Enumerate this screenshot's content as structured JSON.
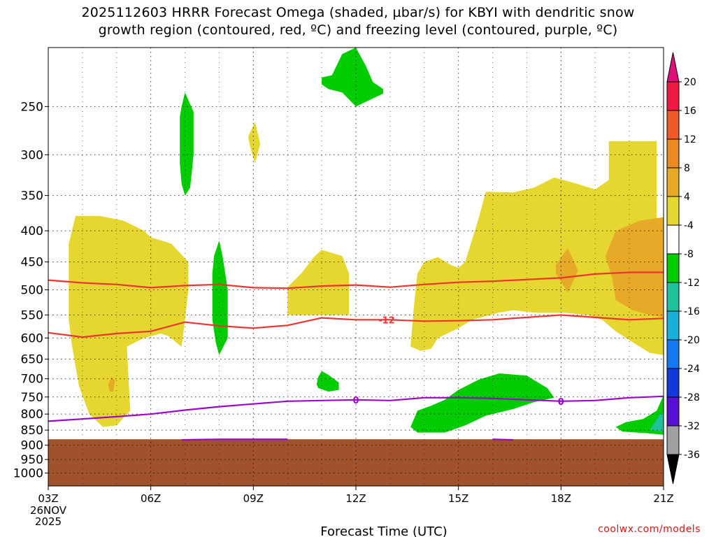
{
  "title": {
    "line1": "2025112603 HRRR Forecast Omega (shaded, µbar/s) for KBYI with dendritic snow",
    "line2": "growth region (contoured, red, ºC) and freezing level (contoured, purple, ºC)"
  },
  "credit": "coolwx.com/models",
  "chart_data": {
    "type": "heatmap",
    "xlabel": "Forecast Time (UTC)",
    "x_ticks": [
      "03Z",
      "06Z",
      "09Z",
      "12Z",
      "15Z",
      "18Z",
      "21Z"
    ],
    "x_tick_hours": [
      3,
      6,
      9,
      12,
      15,
      18,
      21
    ],
    "x_start_date": [
      "26NOV",
      "2025"
    ],
    "x_range": [
      3,
      21
    ],
    "y_ticks": [
      250,
      300,
      350,
      400,
      450,
      500,
      550,
      600,
      650,
      700,
      750,
      800,
      850,
      900,
      950,
      1000
    ],
    "y_range": [
      200,
      1050
    ],
    "y_scale": "log-pressure",
    "grid": true,
    "colorbar": {
      "labels": [
        "20",
        "16",
        "12",
        "8",
        "4",
        "-4",
        "-8",
        "-12",
        "-16",
        "-20",
        "-24",
        "-28",
        "-32",
        "-36"
      ],
      "colors": [
        "#ee1a44",
        "#f05a2a",
        "#ea8a24",
        "#e6aa28",
        "#e6d630",
        "#ffffff",
        "#00cc00",
        "#1fc09a",
        "#18b0d8",
        "#1478f0",
        "#1238d8",
        "#5810d2",
        "#9a08cc",
        "#a0a0a0"
      ],
      "top_color": "#e0107a",
      "bottom_color": "#000000"
    },
    "ground_color": "#a0522d",
    "ground_top_pressure": 880,
    "omega_regions": [
      {
        "value_class": "4 to 8",
        "color": "#e6d630",
        "points": [
          [
            3.6,
            485
          ],
          [
            3.6,
            560
          ],
          [
            3.7,
            620
          ],
          [
            3.9,
            720
          ],
          [
            4.2,
            800
          ],
          [
            4.6,
            840
          ],
          [
            5.0,
            835
          ],
          [
            5.4,
            790
          ],
          [
            5.3,
            620
          ],
          [
            5.8,
            600
          ],
          [
            6.3,
            590
          ],
          [
            6.5,
            595
          ],
          [
            6.9,
            620
          ],
          [
            7.0,
            560
          ],
          [
            7.1,
            500
          ],
          [
            7.1,
            450
          ],
          [
            6.6,
            420
          ],
          [
            6.0,
            410
          ],
          [
            5.8,
            400
          ],
          [
            5.2,
            385
          ],
          [
            4.5,
            378
          ],
          [
            3.8,
            378
          ],
          [
            3.6,
            420
          ]
        ]
      },
      {
        "value_class": "4 to 8",
        "color": "#e6d630",
        "points": [
          [
            10.0,
            550
          ],
          [
            10.0,
            495
          ],
          [
            10.4,
            470
          ],
          [
            10.8,
            440
          ],
          [
            11.0,
            430
          ],
          [
            11.6,
            440
          ],
          [
            11.8,
            470
          ],
          [
            11.8,
            550
          ]
        ]
      },
      {
        "value_class": "4 to 8",
        "color": "#e6d630",
        "points": [
          [
            13.6,
            620
          ],
          [
            13.7,
            530
          ],
          [
            13.8,
            470
          ],
          [
            14.0,
            450
          ],
          [
            14.4,
            442
          ],
          [
            14.8,
            456
          ],
          [
            15.0,
            460
          ],
          [
            15.2,
            450
          ],
          [
            15.6,
            380
          ],
          [
            15.8,
            345
          ],
          [
            16.6,
            346
          ],
          [
            17.2,
            340
          ],
          [
            17.8,
            327
          ],
          [
            18.4,
            334
          ],
          [
            19.0,
            342
          ],
          [
            19.4,
            330
          ],
          [
            19.4,
            285
          ],
          [
            20.8,
            285
          ],
          [
            20.8,
            380
          ],
          [
            21.0,
            390
          ],
          [
            21.0,
            640
          ],
          [
            20.6,
            635
          ],
          [
            20.0,
            605
          ],
          [
            19.6,
            585
          ],
          [
            19.2,
            560
          ],
          [
            18.8,
            550
          ],
          [
            18.0,
            545
          ],
          [
            17.2,
            545
          ],
          [
            16.6,
            540
          ],
          [
            16.2,
            545
          ],
          [
            15.4,
            560
          ],
          [
            15.0,
            578
          ],
          [
            14.4,
            600
          ],
          [
            14.2,
            625
          ],
          [
            13.9,
            630
          ]
        ]
      },
      {
        "value_class": "4 to 8",
        "color": "#e6d630",
        "points": [
          [
            8.85,
            280
          ],
          [
            9.05,
            265
          ],
          [
            9.2,
            288
          ],
          [
            9.05,
            310
          ],
          [
            8.9,
            290
          ]
        ]
      },
      {
        "value_class": "8 to 12",
        "color": "#e6aa28",
        "points": [
          [
            17.85,
            455
          ],
          [
            18.2,
            427
          ],
          [
            18.5,
            465
          ],
          [
            18.2,
            505
          ],
          [
            17.85,
            470
          ]
        ]
      },
      {
        "value_class": "8 to 12",
        "color": "#e6aa28",
        "points": [
          [
            19.5,
            480
          ],
          [
            19.3,
            440
          ],
          [
            19.6,
            400
          ],
          [
            20.3,
            385
          ],
          [
            21.0,
            380
          ],
          [
            21.0,
            555
          ],
          [
            20.6,
            550
          ],
          [
            20.1,
            540
          ],
          [
            19.6,
            520
          ]
        ]
      },
      {
        "value_class": "8 to 12",
        "color": "#e6aa28",
        "points": [
          [
            4.75,
            715
          ],
          [
            4.85,
            695
          ],
          [
            4.95,
            705
          ],
          [
            4.9,
            735
          ],
          [
            4.8,
            735
          ]
        ]
      },
      {
        "value_class": "-4 to -8",
        "color": "#00cc00",
        "points": [
          [
            11.3,
            222
          ],
          [
            11.6,
            205
          ],
          [
            12.0,
            200
          ],
          [
            12.3,
            215
          ],
          [
            12.5,
            228
          ],
          [
            12.8,
            234
          ],
          [
            12.8,
            238
          ],
          [
            12.0,
            250
          ],
          [
            11.6,
            237
          ],
          [
            11.2,
            234
          ],
          [
            11.0,
            230
          ],
          [
            11.0,
            224
          ]
        ]
      },
      {
        "value_class": "-4 to -8",
        "color": "#00cc00",
        "points": [
          [
            6.85,
            260
          ],
          [
            6.9,
            250
          ],
          [
            7.0,
            237
          ],
          [
            7.25,
            255
          ],
          [
            7.25,
            300
          ],
          [
            7.15,
            340
          ],
          [
            7.0,
            350
          ],
          [
            6.9,
            335
          ],
          [
            6.85,
            310
          ]
        ]
      },
      {
        "value_class": "-4 to -8",
        "color": "#00cc00",
        "points": [
          [
            7.8,
            470
          ],
          [
            7.85,
            440
          ],
          [
            8.0,
            415
          ],
          [
            8.1,
            440
          ],
          [
            8.25,
            500
          ],
          [
            8.25,
            600
          ],
          [
            8.0,
            640
          ],
          [
            7.9,
            610
          ],
          [
            7.8,
            560
          ]
        ]
      },
      {
        "value_class": "-4 to -8",
        "color": "#00cc00",
        "points": [
          [
            10.85,
            715
          ],
          [
            10.9,
            695
          ],
          [
            11.0,
            680
          ],
          [
            11.2,
            690
          ],
          [
            11.5,
            710
          ],
          [
            11.5,
            730
          ],
          [
            11.2,
            735
          ],
          [
            10.9,
            725
          ]
        ]
      },
      {
        "value_class": "-4 to -8",
        "color": "#00cc00",
        "points": [
          [
            13.6,
            840
          ],
          [
            13.8,
            790
          ],
          [
            14.2,
            775
          ],
          [
            14.6,
            758
          ],
          [
            15.0,
            730
          ],
          [
            15.6,
            702
          ],
          [
            16.2,
            686
          ],
          [
            17.0,
            692
          ],
          [
            17.6,
            725
          ],
          [
            17.8,
            752
          ],
          [
            17.2,
            765
          ],
          [
            16.6,
            785
          ],
          [
            15.8,
            805
          ],
          [
            15.2,
            835
          ],
          [
            14.6,
            858
          ],
          [
            13.8,
            858
          ]
        ]
      },
      {
        "value_class": "-4 to -8",
        "color": "#00cc00",
        "points": [
          [
            19.6,
            840
          ],
          [
            19.9,
            825
          ],
          [
            20.4,
            815
          ],
          [
            20.8,
            790
          ],
          [
            21.0,
            745
          ],
          [
            21.0,
            865
          ],
          [
            20.5,
            860
          ],
          [
            19.8,
            855
          ]
        ]
      },
      {
        "value_class": "-8 to -12",
        "color": "#1fc09a",
        "points": [
          [
            20.6,
            850
          ],
          [
            20.9,
            800
          ],
          [
            21.0,
            795
          ],
          [
            21.0,
            855
          ]
        ]
      }
    ],
    "dgz_contours": [
      {
        "label": "-12",
        "color": "#ee3333",
        "x": [
          3,
          4,
          5,
          6,
          7,
          8,
          9,
          10,
          11,
          12,
          13,
          14,
          15,
          16,
          17,
          18,
          19,
          20,
          21
        ],
        "y": [
          482,
          487,
          490,
          496,
          492,
          490,
          496,
          497,
          493,
          491,
          495,
          490,
          486,
          484,
          481,
          478,
          471,
          468,
          468
        ]
      },
      {
        "label": "-12",
        "color": "#ee3333",
        "x": [
          3,
          4,
          5,
          6,
          7,
          8,
          9,
          10,
          11,
          12,
          13,
          14,
          15,
          16,
          17,
          18,
          19,
          20,
          21
        ],
        "y": [
          588,
          598,
          590,
          585,
          565,
          573,
          578,
          572,
          556,
          560,
          560,
          563,
          562,
          560,
          555,
          550,
          555,
          560,
          557
        ]
      }
    ],
    "freezing_level": {
      "label": "0",
      "color": "#9a08cc",
      "x": [
        3,
        4,
        5,
        6,
        7,
        8,
        9,
        10,
        11,
        12,
        13,
        14,
        15,
        16,
        17,
        18,
        19,
        20,
        21
      ],
      "y": [
        822,
        815,
        808,
        800,
        788,
        778,
        770,
        762,
        760,
        758,
        760,
        752,
        752,
        754,
        758,
        762,
        760,
        752,
        748
      ]
    },
    "freezing_level_near_ground": [
      {
        "x": [
          6.9,
          7.5,
          8.0,
          9.0,
          10.0
        ],
        "y": [
          882,
          881,
          880,
          880,
          880
        ]
      },
      {
        "x": [
          16.0,
          16.6
        ],
        "y": [
          880,
          882
        ]
      }
    ]
  }
}
